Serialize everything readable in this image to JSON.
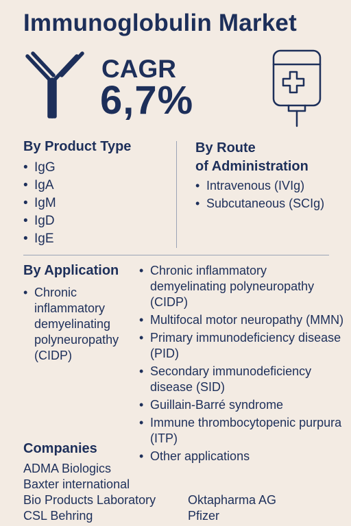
{
  "title": "Immunoglobulin Market",
  "cagr": {
    "label": "CAGR",
    "value": "6,7%"
  },
  "icons": {
    "antibody": "antibody-icon",
    "iv_bag": "iv-bag-icon"
  },
  "product_type": {
    "heading": "By Product Type",
    "items": [
      "IgG",
      "IgA",
      "IgM",
      "IgD",
      "IgE"
    ]
  },
  "route": {
    "heading_line1": "By Route",
    "heading_line2": "of Administration",
    "items": [
      "Intravenous (IVIg)",
      "Subcutaneous (SCIg)"
    ]
  },
  "application": {
    "heading": "By Application",
    "left_items": [
      "Chronic inflammatory demyelinating polyneuropathy (CIDP)"
    ],
    "right_items": [
      "Chronic inflammatory demyelinating polyneuropathy (CIDP)",
      "Multifocal motor neuropathy (MMN)",
      "Primary immunodeficiency disease (PID)",
      "Secondary immunodeficiency disease (SID)",
      "Guillain-Barré syndrome",
      "Immune thrombocytopenic purpura (ITP)",
      "Other applications"
    ]
  },
  "companies": {
    "heading": "Companies",
    "left": [
      "ADMA Biologics",
      "Baxter international",
      "Bio Products Laboratory",
      "CSL Behring"
    ],
    "right": [
      "Oktapharma AG",
      "Pfizer"
    ]
  },
  "colors": {
    "background": "#f3ebe3",
    "navy": "#1d2f5a",
    "divider": "#9aa3b5"
  }
}
